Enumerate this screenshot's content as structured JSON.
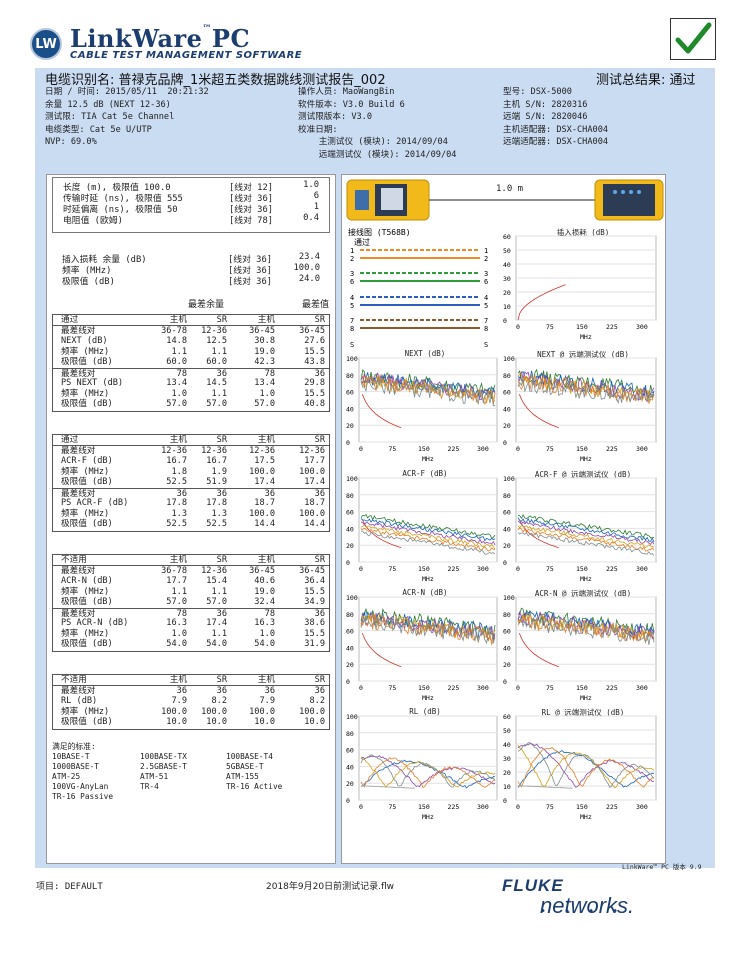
{
  "header": {
    "logo_text": "LW",
    "brand": "LinkWare",
    "brand_suffix": "PC",
    "tm": "™",
    "tagline": "CABLE TEST MANAGEMENT SOFTWARE",
    "pass_icon": "checkmark-icon"
  },
  "report": {
    "title": "电缆识别名: 普禄克品牌_1米超五类数据跳线测试报告_002",
    "overall": "测试总结果: 通过",
    "col1": [
      "日期 / 时间: 2015/05/11  20:21:32",
      "余量 12.5 dB (NEXT 12-36)",
      "测试限: TIA Cat 5e Channel",
      "电缆类型: Cat 5e U/UTP",
      "NVP: 69.0%"
    ],
    "col2": [
      "操作人员: MaoWangBin",
      "软件版本: V3.0 Build 6",
      "测试限版本: V3.0",
      "校准日期:",
      "    主测试仪 (模块): 2014/09/04",
      "    远端测试仪 (模块): 2014/09/04"
    ],
    "col3": [
      "型号: DSX-5000",
      "主机 S/N: 2820316",
      "远端 S/N: 2820046",
      "主机适配器: DSX-CHA004",
      "远端适配器: DSX-CHA004"
    ]
  },
  "summary": {
    "rows": [
      [
        "长度 (m), 极限值 100.0",
        "[线对 12]",
        "1.0"
      ],
      [
        "传输时延 (ns), 极限值 555",
        "[线对 36]",
        "6"
      ],
      [
        "时延偏离 (ns), 极限值 50",
        "[线对 36]",
        "1"
      ],
      [
        "电阻值 (欧姆)",
        "[线对 78]",
        "0.4"
      ]
    ],
    "ins_rows": [
      [
        "插入损耗 余量 (dB)",
        "[线对 36]",
        "23.4"
      ],
      [
        "频率 (MHz)",
        "[线对 36]",
        "100.0"
      ],
      [
        "极限值 (dB)",
        "[线对 36]",
        "24.0"
      ]
    ],
    "worst_margin": "最差余量",
    "worst_value": "最差值"
  },
  "groups": [
    {
      "head": [
        "通过",
        "主机",
        "SR",
        "主机",
        "SR"
      ],
      "rows": [
        [
          "最差线对",
          "36-78",
          "12-36",
          "36-45",
          "36-45"
        ],
        [
          "NEXT (dB)",
          "14.8",
          "12.5",
          "30.8",
          "27.6"
        ],
        [
          "频率 (MHz)",
          "1.1",
          "1.1",
          "19.0",
          "15.5"
        ],
        [
          "极限值 (dB)",
          "60.0",
          "60.0",
          "42.3",
          "43.8"
        ]
      ],
      "rows2": [
        [
          "最差线对",
          "78",
          "36",
          "78",
          "36"
        ],
        [
          "PS NEXT (dB)",
          "13.4",
          "14.5",
          "13.4",
          "29.8"
        ],
        [
          "频率 (MHz)",
          "1.0",
          "1.1",
          "1.0",
          "15.5"
        ],
        [
          "极限值 (dB)",
          "57.0",
          "57.0",
          "57.0",
          "40.8"
        ]
      ]
    },
    {
      "head": [
        "通过",
        "主机",
        "SR",
        "主机",
        "SR"
      ],
      "rows": [
        [
          "最差线对",
          "12-36",
          "12-36",
          "12-36",
          "12-36"
        ],
        [
          "ACR-F (dB)",
          "16.7",
          "16.7",
          "17.5",
          "17.7"
        ],
        [
          "频率 (MHz)",
          "1.8",
          "1.9",
          "100.0",
          "100.0"
        ],
        [
          "极限值 (dB)",
          "52.5",
          "51.9",
          "17.4",
          "17.4"
        ]
      ],
      "rows2": [
        [
          "最差线对",
          "36",
          "36",
          "36",
          "36"
        ],
        [
          "PS ACR-F (dB)",
          "17.8",
          "17.8",
          "18.7",
          "18.7"
        ],
        [
          "频率 (MHz)",
          "1.3",
          "1.3",
          "100.0",
          "100.0"
        ],
        [
          "极限值 (dB)",
          "52.5",
          "52.5",
          "14.4",
          "14.4"
        ]
      ]
    },
    {
      "head": [
        "不适用",
        "主机",
        "SR",
        "主机",
        "SR"
      ],
      "rows": [
        [
          "最差线对",
          "36-78",
          "12-36",
          "36-45",
          "36-45"
        ],
        [
          "ACR-N (dB)",
          "17.7",
          "15.4",
          "40.6",
          "36.4"
        ],
        [
          "频率 (MHz)",
          "1.1",
          "1.1",
          "19.0",
          "15.5"
        ],
        [
          "极限值 (dB)",
          "57.0",
          "57.0",
          "32.4",
          "34.9"
        ]
      ],
      "rows2": [
        [
          "最差线对",
          "78",
          "36",
          "78",
          "36"
        ],
        [
          "PS ACR-N (dB)",
          "16.3",
          "17.4",
          "16.3",
          "38.6"
        ],
        [
          "频率 (MHz)",
          "1.0",
          "1.1",
          "1.0",
          "15.5"
        ],
        [
          "极限值 (dB)",
          "54.0",
          "54.0",
          "54.0",
          "31.9"
        ]
      ]
    },
    {
      "head": [
        "不适用",
        "主机",
        "SR",
        "主机",
        "SR"
      ],
      "rows": [
        [
          "最差线对",
          "36",
          "36",
          "36",
          "36"
        ],
        [
          "RL (dB)",
          "7.9",
          "8.2",
          "7.9",
          "8.2"
        ],
        [
          "频率 (MHz)",
          "100.0",
          "100.0",
          "100.0",
          "100.0"
        ],
        [
          "极限值 (dB)",
          "10.0",
          "10.0",
          "10.0",
          "10.0"
        ]
      ],
      "rows2": []
    }
  ],
  "standards": {
    "title": "满足的标准:",
    "items": [
      "10BASE-T",
      "100BASE-TX",
      "100BASE-T4",
      "1000BASE-T",
      "2.5GBASE-T",
      "5GBASE-T",
      "ATM-25",
      "ATM-51",
      "ATM-155",
      "100VG-AnyLan",
      "TR-4",
      "TR-16 Active",
      "TR-16 Passive",
      "",
      ""
    ]
  },
  "link": {
    "length": "1.0 m"
  },
  "wiremap": {
    "title": "接线图 (T568B)",
    "status": "通过",
    "pins_left": [
      "1",
      "2",
      "3",
      "6",
      "4",
      "5",
      "7",
      "8",
      "S"
    ],
    "pins_right": [
      "1",
      "2",
      "3",
      "6",
      "4",
      "5",
      "7",
      "8",
      "S"
    ],
    "colors": [
      "#f08a24",
      "#f08a24",
      "#2e9e3c",
      "#2e9e3c",
      "#2a5fbf",
      "#2a5fbf",
      "#8a5a2b",
      "#8a5a2b"
    ]
  },
  "charts": [
    {
      "title": "插入损耗 (dB)",
      "yticks": [
        "60",
        "50",
        "40",
        "30",
        "20",
        "10",
        "0"
      ],
      "xticks": [
        "0",
        "75",
        "150",
        "225",
        "300"
      ],
      "xlabel": "MHz",
      "kind": "ins"
    },
    {
      "title": "NEXT (dB)",
      "yticks": [
        "100",
        "80",
        "60",
        "40",
        "20",
        "0"
      ],
      "xticks": [
        "0",
        "75",
        "150",
        "225",
        "300"
      ],
      "xlabel": "MHz",
      "kind": "xt"
    },
    {
      "title": "NEXT @ 远端测试仪 (dB)",
      "yticks": [
        "100",
        "80",
        "60",
        "40",
        "20",
        "0"
      ],
      "xticks": [
        "0",
        "75",
        "150",
        "225",
        "300"
      ],
      "xlabel": "MHz",
      "kind": "xt"
    },
    {
      "title": "ACR-F (dB)",
      "yticks": [
        "100",
        "80",
        "60",
        "40",
        "20",
        "0"
      ],
      "xticks": [
        "0",
        "75",
        "150",
        "225",
        "300"
      ],
      "xlabel": "MHz",
      "kind": "acrf"
    },
    {
      "title": "ACR-F @ 远端测试仪 (dB)",
      "yticks": [
        "100",
        "80",
        "60",
        "40",
        "20",
        "0"
      ],
      "xticks": [
        "0",
        "75",
        "150",
        "225",
        "300"
      ],
      "xlabel": "MHz",
      "kind": "acrf"
    },
    {
      "title": "ACR-N (dB)",
      "yticks": [
        "100",
        "80",
        "60",
        "40",
        "20",
        "0"
      ],
      "xticks": [
        "0",
        "75",
        "150",
        "225",
        "300"
      ],
      "xlabel": "MHz",
      "kind": "xt"
    },
    {
      "title": "ACR-N @ 远端测试仪 (dB)",
      "yticks": [
        "100",
        "80",
        "60",
        "40",
        "20",
        "0"
      ],
      "xticks": [
        "0",
        "75",
        "150",
        "225",
        "300"
      ],
      "xlabel": "MHz",
      "kind": "xt"
    },
    {
      "title": "RL (dB)",
      "yticks": [
        "100",
        "80",
        "60",
        "40",
        "20",
        "0"
      ],
      "xticks": [
        "0",
        "75",
        "150",
        "225",
        "300"
      ],
      "xlabel": "MHz",
      "kind": "rl"
    },
    {
      "title": "RL @ 远端测试仪 (dB)",
      "yticks": [
        "60",
        "50",
        "40",
        "30",
        "20",
        "10",
        "0"
      ],
      "xticks": [
        "0",
        "75",
        "150",
        "225",
        "300"
      ],
      "xlabel": "MHz",
      "kind": "rl2"
    }
  ],
  "footer": {
    "version": "LinkWare™ PC 版本 9.9",
    "project": "项目: DEFAULT",
    "record": "2018年9月20日前测试记录.flw",
    "brand1": "FLUKE",
    "brand2": "networks."
  }
}
